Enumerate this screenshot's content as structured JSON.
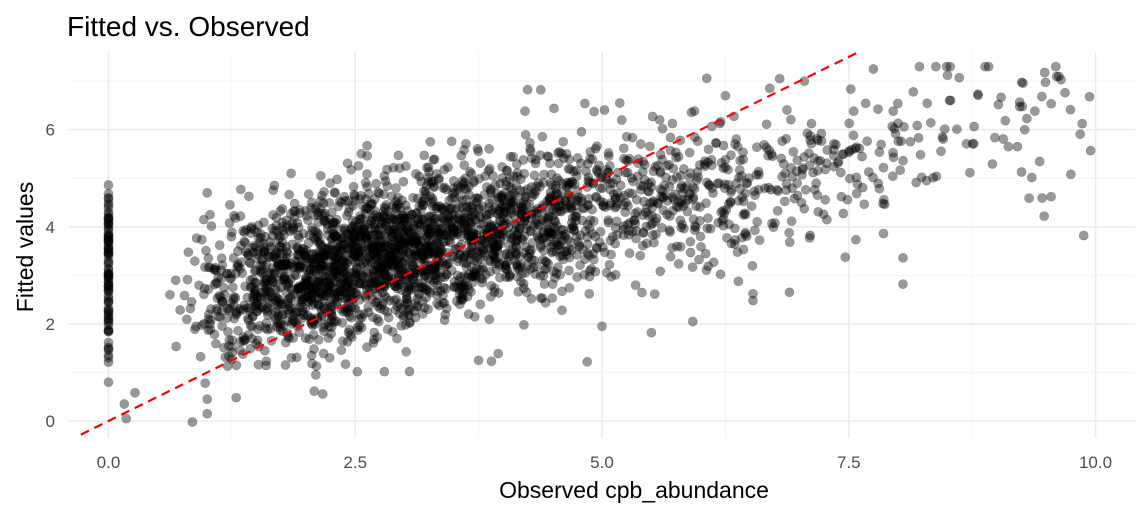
{
  "chart_data": {
    "type": "scatter",
    "title": "Fitted vs. Observed",
    "xlabel": "Observed cpb_abundance",
    "ylabel": "Fitted values",
    "xlim": [
      -0.4,
      10.4
    ],
    "ylim": [
      -0.35,
      7.6
    ],
    "x_ticks": [
      0.0,
      2.5,
      5.0,
      7.5,
      10.0
    ],
    "x_tick_labels": [
      "0.0",
      "2.5",
      "5.0",
      "7.5",
      "10.0"
    ],
    "y_ticks": [
      0,
      2,
      4,
      6
    ],
    "y_tick_labels": [
      "0",
      "2",
      "4",
      "6"
    ],
    "grid": true,
    "legend": "none",
    "point_color": "#000000",
    "point_opacity": 0.4,
    "reference_line": {
      "slope": 1,
      "intercept": 0,
      "color": "#ff0000",
      "style": "dashed"
    },
    "n_points": 3000,
    "trend": {
      "intercept": 2.2,
      "slope": 0.43,
      "noise_sd": 0.75
    },
    "points_sample": [
      [
        0.0,
        4.05
      ],
      [
        0.0,
        3.3
      ],
      [
        0.0,
        2.45
      ],
      [
        0.0,
        0.8
      ],
      [
        0.0,
        1.3
      ],
      [
        0.16,
        0.35
      ],
      [
        0.18,
        0.05
      ],
      [
        0.27,
        0.58
      ],
      [
        0.85,
        -0.02
      ],
      [
        1.0,
        0.15
      ],
      [
        1.0,
        0.45
      ],
      [
        0.98,
        0.78
      ],
      [
        1.0,
        4.7
      ],
      [
        1.03,
        4.25
      ],
      [
        1.23,
        4.45
      ],
      [
        1.52,
        1.16
      ],
      [
        2.1,
        0.95
      ],
      [
        3.05,
        1.02
      ],
      [
        1.85,
        5.1
      ],
      [
        2.15,
        5.05
      ],
      [
        2.62,
        5.67
      ],
      [
        3.26,
        5.75
      ],
      [
        4.38,
        6.82
      ],
      [
        4.22,
        6.38
      ],
      [
        5.18,
        6.55
      ],
      [
        5.2,
        6.2
      ],
      [
        6.25,
        6.7
      ],
      [
        6.8,
        7.05
      ],
      [
        6.7,
        6.85
      ],
      [
        7.05,
        7.0
      ],
      [
        7.75,
        7.25
      ],
      [
        7.55,
        6.38
      ],
      [
        8.5,
        7.12
      ],
      [
        8.62,
        7.07
      ],
      [
        9.65,
        7.03
      ],
      [
        7.95,
        6.38
      ],
      [
        9.95,
        5.57
      ],
      [
        9.88,
        3.82
      ],
      [
        9.75,
        5.08
      ],
      [
        9.48,
        4.22
      ],
      [
        9.55,
        4.62
      ],
      [
        8.05,
        2.82
      ],
      [
        5.92,
        2.05
      ],
      [
        5.0,
        1.95
      ],
      [
        4.85,
        1.22
      ],
      [
        3.88,
        1.23
      ],
      [
        3.75,
        1.25
      ],
      [
        5.5,
        1.82
      ],
      [
        6.53,
        2.48
      ],
      [
        6.53,
        2.62
      ],
      [
        6.9,
        2.65
      ],
      [
        8.05,
        3.36
      ]
    ]
  }
}
